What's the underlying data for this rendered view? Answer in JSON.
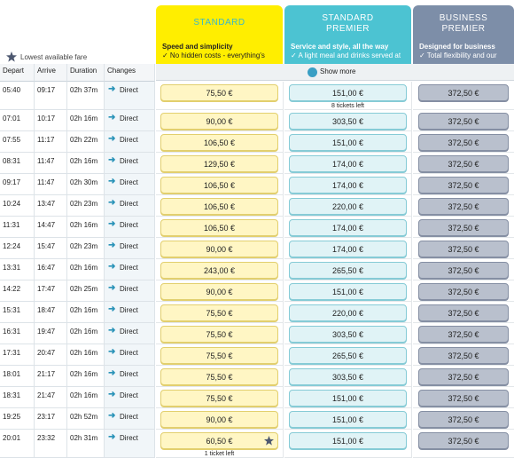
{
  "legend": {
    "label": "Lowest available fare"
  },
  "fare_classes": [
    {
      "title": "STANDARD",
      "subtitle": "Speed and simplicity",
      "feature": "✓ No hidden costs - everything's"
    },
    {
      "title": "STANDARD PREMIER",
      "subtitle": "Service and style, all the way",
      "feature": "✓ A light meal and drinks served at"
    },
    {
      "title": "BUSINESS PREMIER",
      "subtitle": "Designed for business",
      "feature": "✓ Total flexibility and our"
    }
  ],
  "show_more": "Show more",
  "table": {
    "headers": [
      "Depart",
      "Arrive",
      "Duration",
      "Changes"
    ],
    "rows": [
      {
        "depart": "05:40",
        "arrive": "09:17",
        "duration": "02h 37m",
        "changes": "Direct",
        "fares": [
          {
            "price": "75,50 €"
          },
          {
            "price": "151,00 €",
            "note": "8 tickets left"
          },
          {
            "price": "372,50 €"
          }
        ]
      },
      {
        "depart": "07:01",
        "arrive": "10:17",
        "duration": "02h 16m",
        "changes": "Direct",
        "fares": [
          {
            "price": "90,00 €"
          },
          {
            "price": "303,50 €"
          },
          {
            "price": "372,50 €"
          }
        ]
      },
      {
        "depart": "07:55",
        "arrive": "11:17",
        "duration": "02h 22m",
        "changes": "Direct",
        "fares": [
          {
            "price": "106,50 €"
          },
          {
            "price": "151,00 €"
          },
          {
            "price": "372,50 €"
          }
        ]
      },
      {
        "depart": "08:31",
        "arrive": "11:47",
        "duration": "02h 16m",
        "changes": "Direct",
        "fares": [
          {
            "price": "129,50 €"
          },
          {
            "price": "174,00 €"
          },
          {
            "price": "372,50 €"
          }
        ]
      },
      {
        "depart": "09:17",
        "arrive": "11:47",
        "duration": "02h 30m",
        "changes": "Direct",
        "fares": [
          {
            "price": "106,50 €"
          },
          {
            "price": "174,00 €"
          },
          {
            "price": "372,50 €"
          }
        ]
      },
      {
        "depart": "10:24",
        "arrive": "13:47",
        "duration": "02h 23m",
        "changes": "Direct",
        "fares": [
          {
            "price": "106,50 €"
          },
          {
            "price": "220,00 €"
          },
          {
            "price": "372,50 €"
          }
        ]
      },
      {
        "depart": "11:31",
        "arrive": "14:47",
        "duration": "02h 16m",
        "changes": "Direct",
        "fares": [
          {
            "price": "106,50 €"
          },
          {
            "price": "174,00 €"
          },
          {
            "price": "372,50 €"
          }
        ]
      },
      {
        "depart": "12:24",
        "arrive": "15:47",
        "duration": "02h 23m",
        "changes": "Direct",
        "fares": [
          {
            "price": "90,00 €"
          },
          {
            "price": "174,00 €"
          },
          {
            "price": "372,50 €"
          }
        ]
      },
      {
        "depart": "13:31",
        "arrive": "16:47",
        "duration": "02h 16m",
        "changes": "Direct",
        "fares": [
          {
            "price": "243,00 €"
          },
          {
            "price": "265,50 €"
          },
          {
            "price": "372,50 €"
          }
        ]
      },
      {
        "depart": "14:22",
        "arrive": "17:47",
        "duration": "02h 25m",
        "changes": "Direct",
        "fares": [
          {
            "price": "90,00 €"
          },
          {
            "price": "151,00 €"
          },
          {
            "price": "372,50 €"
          }
        ]
      },
      {
        "depart": "15:31",
        "arrive": "18:47",
        "duration": "02h 16m",
        "changes": "Direct",
        "fares": [
          {
            "price": "75,50 €"
          },
          {
            "price": "220,00 €"
          },
          {
            "price": "372,50 €"
          }
        ]
      },
      {
        "depart": "16:31",
        "arrive": "19:47",
        "duration": "02h 16m",
        "changes": "Direct",
        "fares": [
          {
            "price": "75,50 €"
          },
          {
            "price": "303,50 €"
          },
          {
            "price": "372,50 €"
          }
        ]
      },
      {
        "depart": "17:31",
        "arrive": "20:47",
        "duration": "02h 16m",
        "changes": "Direct",
        "fares": [
          {
            "price": "75,50 €"
          },
          {
            "price": "265,50 €"
          },
          {
            "price": "372,50 €"
          }
        ]
      },
      {
        "depart": "18:01",
        "arrive": "21:17",
        "duration": "02h 16m",
        "changes": "Direct",
        "fares": [
          {
            "price": "75,50 €"
          },
          {
            "price": "303,50 €"
          },
          {
            "price": "372,50 €"
          }
        ]
      },
      {
        "depart": "18:31",
        "arrive": "21:47",
        "duration": "02h 16m",
        "changes": "Direct",
        "fares": [
          {
            "price": "75,50 €"
          },
          {
            "price": "151,00 €"
          },
          {
            "price": "372,50 €"
          }
        ]
      },
      {
        "depart": "19:25",
        "arrive": "23:17",
        "duration": "02h 52m",
        "changes": "Direct",
        "fares": [
          {
            "price": "90,00 €"
          },
          {
            "price": "151,00 €"
          },
          {
            "price": "372,50 €"
          }
        ]
      },
      {
        "depart": "20:01",
        "arrive": "23:32",
        "duration": "02h 31m",
        "changes": "Direct",
        "fares": [
          {
            "price": "60,50 €",
            "note": "1 ticket left",
            "lowest": true
          },
          {
            "price": "151,00 €"
          },
          {
            "price": "372,50 €"
          }
        ]
      }
    ]
  }
}
